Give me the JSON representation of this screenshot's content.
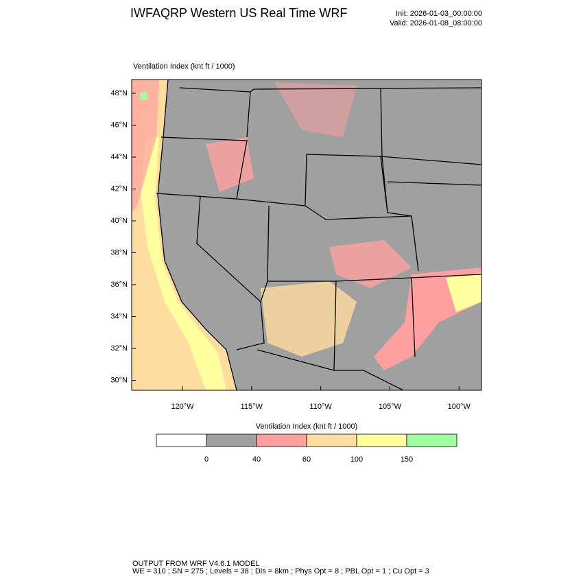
{
  "header": {
    "title": "IWFAQRP Western US Real Time WRF",
    "init": "Init: 2026-01-03_00:00:00",
    "valid": "Valid: 2026-01-08_08:00:00"
  },
  "map": {
    "label": "Ventilation Index   (knt ft / 1000)",
    "lat_ticks": [
      "48°N",
      "46°N",
      "44°N",
      "42°N",
      "40°N",
      "38°N",
      "36°N",
      "34°N",
      "32°N",
      "30°N"
    ],
    "lon_ticks": [
      "120°W",
      "115°W",
      "110°W",
      "105°W",
      "100°W"
    ]
  },
  "colorbar": {
    "title": "Ventilation Index   (knt ft / 1000)",
    "colors": [
      "#ffffff",
      "#a0a0a0",
      "#ffa0a0",
      "#ffdc9f",
      "#ffff9f",
      "#a0ffa0"
    ],
    "labels": [
      "0",
      "40",
      "60",
      "100",
      "150"
    ]
  },
  "footer": {
    "line1": "OUTPUT FROM WRF V4.6.1 MODEL",
    "line2": "WE = 310 ; SN = 275 ; Levels = 38 ; Dis = 8km ; Phys Opt = 8 ; PBL Opt = 1 ; Cu Opt = 3"
  }
}
